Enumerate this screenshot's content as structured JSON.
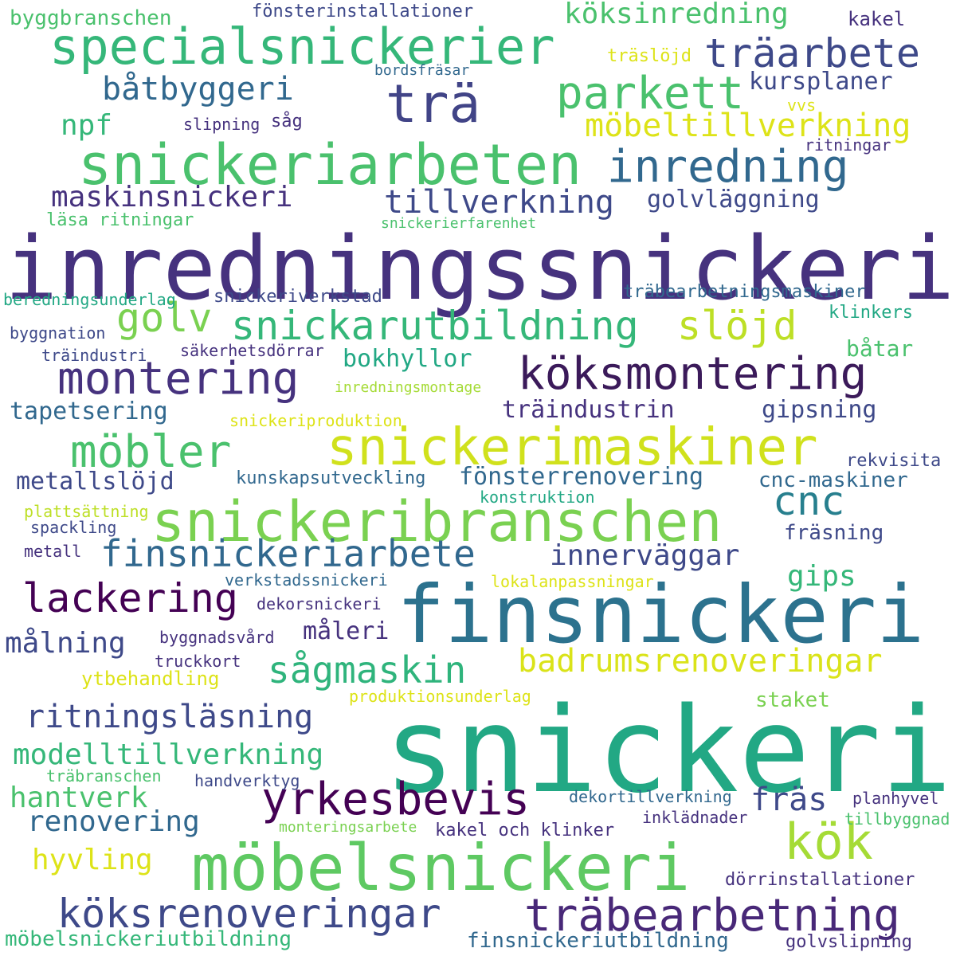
{
  "words": [
    {
      "text": "inredningssnickeri",
      "color": "#46327e"
    },
    {
      "text": "snickeri",
      "color": "#22a884"
    },
    {
      "text": "finsnickeri",
      "color": "#2c728e"
    },
    {
      "text": "snickeriarbeten",
      "color": "#4ac16d"
    },
    {
      "text": "specialsnickerier",
      "color": "#35b779"
    },
    {
      "text": "möbelsnickeri",
      "color": "#5ec962"
    },
    {
      "text": "snickeribranschen",
      "color": "#7ad151"
    },
    {
      "text": "snickerimaskiner",
      "color": "#d0e11c"
    },
    {
      "text": "köksmontering",
      "color": "#3b1a5a"
    },
    {
      "text": "köksrenoveringar",
      "color": "#3e4989"
    },
    {
      "text": "träbearbetning",
      "color": "#482878"
    },
    {
      "text": "trä",
      "color": "#414487"
    },
    {
      "text": "träarbete",
      "color": "#3e4989"
    },
    {
      "text": "inredning",
      "color": "#31688e"
    },
    {
      "text": "parkett",
      "color": "#4ac16d"
    },
    {
      "text": "montering",
      "color": "#46327e"
    },
    {
      "text": "golv",
      "color": "#7ad151"
    },
    {
      "text": "snickarutbildning",
      "color": "#35b779"
    },
    {
      "text": "slöjd",
      "color": "#bddf26"
    },
    {
      "text": "möbler",
      "color": "#4ac16d"
    },
    {
      "text": "yrkesbevis",
      "color": "#440154"
    },
    {
      "text": "kök",
      "color": "#a5db36"
    },
    {
      "text": "finsnickeriarbete",
      "color": "#31688e"
    },
    {
      "text": "lackering",
      "color": "#440154"
    },
    {
      "text": "sågmaskin",
      "color": "#2fb47c"
    },
    {
      "text": "badrumsrenoveringar",
      "color": "#dae319"
    },
    {
      "text": "cnc",
      "color": "#277f8e"
    },
    {
      "text": "båtbyggeri",
      "color": "#31688e"
    },
    {
      "text": "köksinredning",
      "color": "#4ac16d"
    },
    {
      "text": "möbeltillverkning",
      "color": "#dde318"
    },
    {
      "text": "tillverkning",
      "color": "#3e4989"
    },
    {
      "text": "maskinsnickeri",
      "color": "#46327e"
    },
    {
      "text": "innerväggar",
      "color": "#3e4989"
    },
    {
      "text": "ritningsläsning",
      "color": "#3e4989"
    },
    {
      "text": "modelltillverkning",
      "color": "#35b779"
    },
    {
      "text": "hantverk",
      "color": "#4ac16d"
    },
    {
      "text": "renovering",
      "color": "#31688e"
    },
    {
      "text": "hyvling",
      "color": "#dde318"
    },
    {
      "text": "målning",
      "color": "#3e4989"
    },
    {
      "text": "metallslöjd",
      "color": "#3e4989"
    },
    {
      "text": "tapetsering",
      "color": "#31688e"
    },
    {
      "text": "bokhyllor",
      "color": "#22a884"
    },
    {
      "text": "fräs",
      "color": "#3e4989"
    },
    {
      "text": "npf",
      "color": "#35b779"
    },
    {
      "text": "kursplaner",
      "color": "#3e4989"
    },
    {
      "text": "golvläggning",
      "color": "#3e4989"
    },
    {
      "text": "träindustrin",
      "color": "#46327e"
    },
    {
      "text": "gipsning",
      "color": "#3e4989"
    },
    {
      "text": "fönsterrenovering",
      "color": "#31688e"
    },
    {
      "text": "cnc-maskiner",
      "color": "#31688e"
    },
    {
      "text": "gips",
      "color": "#35b779"
    },
    {
      "text": "måleri",
      "color": "#46327e"
    },
    {
      "text": "byggbranschen",
      "color": "#4ac16d"
    },
    {
      "text": "fönsterinstallationer",
      "color": "#3e4989"
    },
    {
      "text": "kakel",
      "color": "#46327e"
    },
    {
      "text": "träslöjd",
      "color": "#dde318"
    },
    {
      "text": "bordsfräsar",
      "color": "#31688e"
    },
    {
      "text": "slipning",
      "color": "#46327e"
    },
    {
      "text": "såg",
      "color": "#46327e"
    },
    {
      "text": "vvs",
      "color": "#dde318"
    },
    {
      "text": "ritningar",
      "color": "#46327e"
    },
    {
      "text": "läsa ritningar",
      "color": "#4ac16d"
    },
    {
      "text": "snickerierfarenhet",
      "color": "#4ac16d"
    },
    {
      "text": "beredningsunderlag",
      "color": "#22a884"
    },
    {
      "text": "snickeriverkstad",
      "color": "#3e4989"
    },
    {
      "text": "träbearbetningsmaskiner",
      "color": "#31688e"
    },
    {
      "text": "byggnation",
      "color": "#3e4989"
    },
    {
      "text": "klinkers",
      "color": "#22a884"
    },
    {
      "text": "träindustri",
      "color": "#3e4989"
    },
    {
      "text": "säkerhetsdörrar",
      "color": "#46327e"
    },
    {
      "text": "båtar",
      "color": "#4ac16d"
    },
    {
      "text": "inredningsmontage",
      "color": "#a5db36"
    },
    {
      "text": "snickeriproduktion",
      "color": "#dde318"
    },
    {
      "text": "kunskapsutveckling",
      "color": "#31688e"
    },
    {
      "text": "rekvisita",
      "color": "#3e4989"
    },
    {
      "text": "plattsättning",
      "color": "#bddf26"
    },
    {
      "text": "konstruktion",
      "color": "#22a884"
    },
    {
      "text": "spackling",
      "color": "#3e4989"
    },
    {
      "text": "fräsning",
      "color": "#3e4989"
    },
    {
      "text": "metall",
      "color": "#46327e"
    },
    {
      "text": "verkstadssnickeri",
      "color": "#31688e"
    },
    {
      "text": "lokalanpassningar",
      "color": "#dde318"
    },
    {
      "text": "dekorsnickeri",
      "color": "#46327e"
    },
    {
      "text": "byggnadsvård",
      "color": "#46327e"
    },
    {
      "text": "truckkort",
      "color": "#46327e"
    },
    {
      "text": "ytbehandling",
      "color": "#dde318"
    },
    {
      "text": "produktionsunderlag",
      "color": "#dde318"
    },
    {
      "text": "staket",
      "color": "#7ad151"
    },
    {
      "text": "träbranschen",
      "color": "#4ac16d"
    },
    {
      "text": "handverktyg",
      "color": "#3e4989"
    },
    {
      "text": "dekortillverkning",
      "color": "#31688e"
    },
    {
      "text": "planhyvel",
      "color": "#46327e"
    },
    {
      "text": "inklädnader",
      "color": "#46327e"
    },
    {
      "text": "tillbyggnad",
      "color": "#4ac16d"
    },
    {
      "text": "monteringsarbete",
      "color": "#7ad151"
    },
    {
      "text": "kakel och klinker",
      "color": "#46327e"
    },
    {
      "text": "dörrinstallationer",
      "color": "#46327e"
    },
    {
      "text": "möbelsnickeriutbildning",
      "color": "#35b779"
    },
    {
      "text": "finsnickeriutbildning",
      "color": "#31688e"
    },
    {
      "text": "golvslipning",
      "color": "#46327e"
    }
  ]
}
